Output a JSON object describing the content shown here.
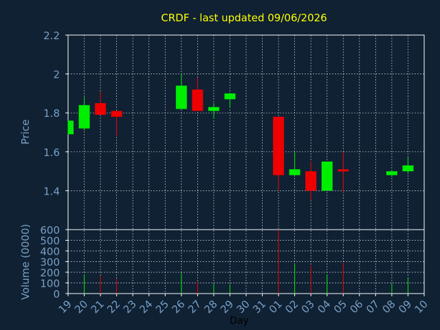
{
  "chart_data": {
    "type": "candlestick",
    "title": "CRDF - last updated 09/06/2026",
    "xlabel": "Day",
    "price_panel": {
      "ylabel": "Price",
      "ylim": [
        1.2,
        2.2
      ],
      "yticks": [
        "2.2",
        "2",
        "1.8",
        "1.6",
        "1.4"
      ],
      "ytick_values": [
        2.2,
        2.0,
        1.8,
        1.6,
        1.4
      ]
    },
    "volume_panel": {
      "ylabel": "Volume (0000)",
      "ylim": [
        0,
        600
      ],
      "yticks": [
        "600",
        "500",
        "400",
        "300",
        "200",
        "100",
        "0"
      ],
      "ytick_values": [
        600,
        500,
        400,
        300,
        200,
        100,
        0
      ]
    },
    "days": [
      "19",
      "20",
      "21",
      "22",
      "23",
      "24",
      "25",
      "26",
      "27",
      "28",
      "29",
      "30",
      "31",
      "01",
      "02",
      "03",
      "04",
      "05",
      "06",
      "07",
      "08",
      "09",
      "10"
    ],
    "candles": [
      {
        "day": "19",
        "open": 1.69,
        "close": 1.76,
        "high": 1.76,
        "low": 1.69,
        "volume": 0
      },
      {
        "day": "20",
        "open": 1.72,
        "close": 1.84,
        "high": 1.88,
        "low": 1.71,
        "volume": 180
      },
      {
        "day": "21",
        "open": 1.85,
        "close": 1.79,
        "high": 1.91,
        "low": 1.79,
        "volume": 165
      },
      {
        "day": "22",
        "open": 1.81,
        "close": 1.78,
        "high": 1.81,
        "low": 1.68,
        "volume": 140
      },
      {
        "day": "26",
        "open": 1.82,
        "close": 1.94,
        "high": 2.0,
        "low": 1.82,
        "volume": 190
      },
      {
        "day": "27",
        "open": 1.92,
        "close": 1.81,
        "high": 1.98,
        "low": 1.81,
        "volume": 110
      },
      {
        "day": "28",
        "open": 1.81,
        "close": 1.83,
        "high": 1.85,
        "low": 1.77,
        "volume": 90
      },
      {
        "day": "29",
        "open": 1.87,
        "close": 1.9,
        "high": 1.9,
        "low": 1.83,
        "volume": 85
      },
      {
        "day": "01",
        "open": 1.78,
        "close": 1.48,
        "high": 1.78,
        "low": 1.4,
        "volume": 600
      },
      {
        "day": "02",
        "open": 1.48,
        "close": 1.51,
        "high": 1.6,
        "low": 1.48,
        "volume": 270
      },
      {
        "day": "03",
        "open": 1.5,
        "close": 1.4,
        "high": 1.55,
        "low": 1.35,
        "volume": 260
      },
      {
        "day": "04",
        "open": 1.4,
        "close": 1.55,
        "high": 1.55,
        "low": 1.4,
        "volume": 180
      },
      {
        "day": "05",
        "open": 1.51,
        "close": 1.5,
        "high": 1.6,
        "low": 1.39,
        "volume": 290
      },
      {
        "day": "08",
        "open": 1.48,
        "close": 1.5,
        "high": 1.5,
        "low": 1.47,
        "volume": 90
      },
      {
        "day": "09",
        "open": 1.5,
        "close": 1.53,
        "high": 1.57,
        "low": 1.49,
        "volume": 145
      }
    ],
    "grid": true,
    "colors": {
      "background": "#0f2133",
      "up": "#00ee00",
      "down": "#ee0000",
      "axis": "#ffffff",
      "grid": "#ffffff",
      "title": "#ffff00",
      "label": "#7a9fc4"
    }
  }
}
